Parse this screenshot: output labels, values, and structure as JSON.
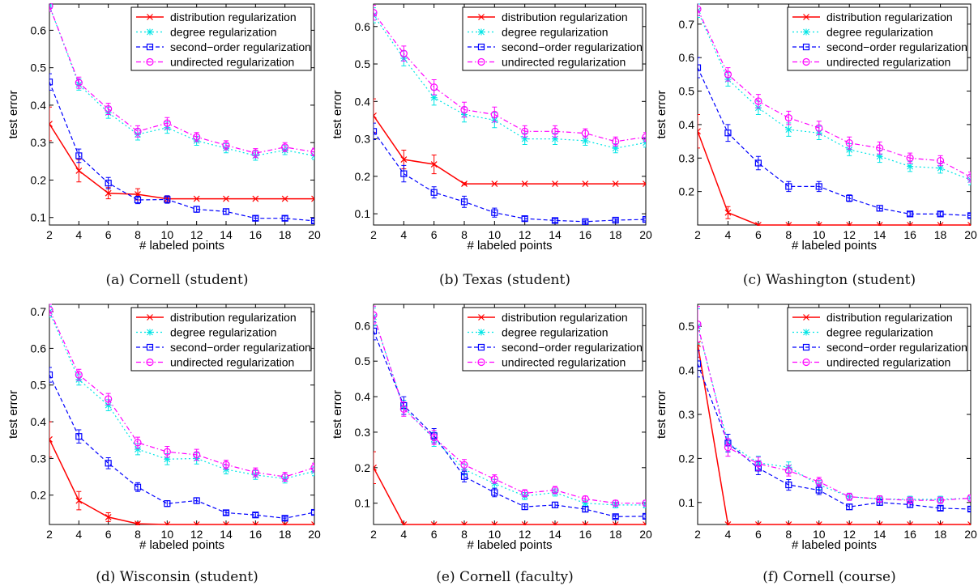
{
  "x_label": "# labeled points",
  "y_label": "test error",
  "legend_entries": [
    "distribution regularization",
    "degree regularization",
    "second−order regularization",
    "undirected regularization"
  ],
  "series_styles": [
    {
      "name": "distribution regularization",
      "color": "#ff0000",
      "marker": "x",
      "dash": "solid"
    },
    {
      "name": "degree regularization",
      "color": "#00e5e5",
      "marker": "asterisk",
      "dash": "dotted"
    },
    {
      "name": "second−order regularization",
      "color": "#0000ff",
      "marker": "square",
      "dash": "dashed"
    },
    {
      "name": "undirected regularization",
      "color": "#ff00ff",
      "marker": "circle",
      "dash": "dashdot"
    }
  ],
  "chart_data": [
    {
      "type": "line",
      "caption": "(a) Cornell (student)",
      "x": [
        2,
        4,
        6,
        8,
        10,
        12,
        14,
        16,
        18,
        20
      ],
      "xlim": [
        2,
        20
      ],
      "ylim": [
        0.08,
        0.67
      ],
      "legend_position": "top-right",
      "xticks": [
        2,
        4,
        6,
        8,
        10,
        12,
        14,
        16,
        18,
        20
      ],
      "yticks": [
        0.1,
        0.2,
        0.3,
        0.4,
        0.5,
        0.6
      ],
      "series": [
        {
          "name": "distribution regularization",
          "values": [
            0.35,
            0.225,
            0.165,
            0.162,
            0.15,
            0.15,
            0.15,
            0.15,
            0.15,
            0.15
          ],
          "errors": [
            0.045,
            0.03,
            0.015,
            0.015,
            0.008,
            0,
            0,
            0,
            0,
            0
          ]
        },
        {
          "name": "degree regularization",
          "values": [
            0.665,
            0.455,
            0.38,
            0.322,
            0.34,
            0.305,
            0.285,
            0.265,
            0.28,
            0.265
          ],
          "errors": [
            0.015,
            0.015,
            0.015,
            0.015,
            0.015,
            0.012,
            0.012,
            0.012,
            0.012,
            0.01
          ]
        },
        {
          "name": "second−order regularization",
          "values": [
            0.462,
            0.265,
            0.192,
            0.147,
            0.148,
            0.122,
            0.116,
            0.098,
            0.098,
            0.091
          ],
          "errors": [
            0.022,
            0.018,
            0.015,
            0.01,
            0.01,
            0.008,
            0.007,
            0.006,
            0.006,
            0.006
          ]
        },
        {
          "name": "undirected regularization",
          "values": [
            0.665,
            0.46,
            0.39,
            0.33,
            0.352,
            0.315,
            0.293,
            0.272,
            0.288,
            0.275
          ],
          "errors": [
            0.015,
            0.015,
            0.015,
            0.015,
            0.015,
            0.012,
            0.012,
            0.012,
            0.012,
            0.01
          ]
        }
      ]
    },
    {
      "type": "line",
      "caption": "(b) Texas (student)",
      "x": [
        2,
        4,
        6,
        8,
        10,
        12,
        14,
        16,
        18,
        20
      ],
      "xlim": [
        2,
        20
      ],
      "ylim": [
        0.07,
        0.66
      ],
      "legend_position": "top-right",
      "xticks": [
        2,
        4,
        6,
        8,
        10,
        12,
        14,
        16,
        18,
        20
      ],
      "yticks": [
        0.1,
        0.2,
        0.3,
        0.4,
        0.5,
        0.6
      ],
      "series": [
        {
          "name": "distribution regularization",
          "values": [
            0.362,
            0.245,
            0.232,
            0.18,
            0.18,
            0.18,
            0.18,
            0.18,
            0.18,
            0.18
          ],
          "errors": [
            0.045,
            0.025,
            0.025,
            0.003,
            0,
            0,
            0,
            0,
            0,
            0
          ]
        },
        {
          "name": "degree regularization",
          "values": [
            0.63,
            0.515,
            0.41,
            0.365,
            0.35,
            0.3,
            0.3,
            0.295,
            0.275,
            0.29
          ],
          "errors": [
            0.02,
            0.02,
            0.02,
            0.02,
            0.02,
            0.015,
            0.015,
            0.012,
            0.012,
            0.012
          ]
        },
        {
          "name": "second−order regularization",
          "values": [
            0.32,
            0.207,
            0.157,
            0.132,
            0.103,
            0.087,
            0.082,
            0.079,
            0.083,
            0.085
          ],
          "errors": [
            0.022,
            0.022,
            0.015,
            0.015,
            0.012,
            0.006,
            0.005,
            0.004,
            0.004,
            0.004
          ]
        },
        {
          "name": "undirected regularization",
          "values": [
            0.637,
            0.528,
            0.438,
            0.378,
            0.365,
            0.32,
            0.32,
            0.315,
            0.293,
            0.305
          ],
          "errors": [
            0.02,
            0.02,
            0.02,
            0.02,
            0.02,
            0.015,
            0.015,
            0.012,
            0.012,
            0.012
          ]
        }
      ]
    },
    {
      "type": "line",
      "caption": "(c) Washington (student)",
      "x": [
        2,
        4,
        6,
        8,
        10,
        12,
        14,
        16,
        18,
        20
      ],
      "xlim": [
        2,
        20
      ],
      "ylim": [
        0.1,
        0.76
      ],
      "legend_position": "top-right",
      "xticks": [
        2,
        4,
        6,
        8,
        10,
        12,
        14,
        16,
        18,
        20
      ],
      "yticks": [
        0.2,
        0.3,
        0.4,
        0.5,
        0.6,
        0.7
      ],
      "series": [
        {
          "name": "distribution regularization",
          "values": [
            0.38,
            0.137,
            0.1,
            0.1,
            0.1,
            0.1,
            0.1,
            0.1,
            0.1,
            0.1
          ],
          "errors": [
            0.05,
            0.018,
            0,
            0,
            0,
            0,
            0,
            0,
            0,
            0
          ]
        },
        {
          "name": "degree regularization",
          "values": [
            0.74,
            0.535,
            0.45,
            0.385,
            0.375,
            0.325,
            0.305,
            0.275,
            0.27,
            0.235
          ],
          "errors": [
            0.02,
            0.02,
            0.02,
            0.02,
            0.02,
            0.018,
            0.018,
            0.015,
            0.015,
            0.015
          ]
        },
        {
          "name": "second−order regularization",
          "values": [
            0.57,
            0.375,
            0.285,
            0.215,
            0.215,
            0.18,
            0.15,
            0.133,
            0.133,
            0.128
          ],
          "errors": [
            0.03,
            0.025,
            0.02,
            0.015,
            0.015,
            0.01,
            0.008,
            0.006,
            0.006,
            0.006
          ]
        },
        {
          "name": "undirected regularization",
          "values": [
            0.745,
            0.55,
            0.47,
            0.42,
            0.39,
            0.345,
            0.33,
            0.3,
            0.292,
            0.243
          ],
          "errors": [
            0.02,
            0.02,
            0.02,
            0.02,
            0.02,
            0.018,
            0.018,
            0.015,
            0.015,
            0.015
          ]
        }
      ]
    },
    {
      "type": "line",
      "caption": "(d) Wisconsin (student)",
      "x": [
        2,
        4,
        6,
        8,
        10,
        12,
        14,
        16,
        18,
        20
      ],
      "xlim": [
        2,
        20
      ],
      "ylim": [
        0.12,
        0.72
      ],
      "legend_position": "top-right",
      "xticks": [
        2,
        4,
        6,
        8,
        10,
        12,
        14,
        16,
        18,
        20
      ],
      "yticks": [
        0.2,
        0.3,
        0.4,
        0.5,
        0.6,
        0.7
      ],
      "series": [
        {
          "name": "distribution regularization",
          "values": [
            0.352,
            0.185,
            0.14,
            0.122,
            0.12,
            0.12,
            0.12,
            0.12,
            0.12,
            0.12
          ],
          "errors": [
            0.048,
            0.025,
            0.012,
            0.004,
            0,
            0,
            0,
            0,
            0,
            0
          ]
        },
        {
          "name": "degree regularization",
          "values": [
            0.7,
            0.515,
            0.445,
            0.325,
            0.298,
            0.3,
            0.27,
            0.255,
            0.245,
            0.265
          ],
          "errors": [
            0.015,
            0.015,
            0.015,
            0.015,
            0.015,
            0.015,
            0.012,
            0.012,
            0.012,
            0.012
          ]
        },
        {
          "name": "second−order regularization",
          "values": [
            0.528,
            0.36,
            0.287,
            0.222,
            0.177,
            0.185,
            0.152,
            0.146,
            0.137,
            0.153
          ],
          "errors": [
            0.02,
            0.018,
            0.015,
            0.012,
            0.008,
            0.008,
            0.006,
            0.006,
            0.005,
            0.006
          ]
        },
        {
          "name": "undirected regularization",
          "values": [
            0.705,
            0.528,
            0.462,
            0.343,
            0.318,
            0.31,
            0.283,
            0.262,
            0.25,
            0.275
          ],
          "errors": [
            0.015,
            0.015,
            0.015,
            0.015,
            0.015,
            0.015,
            0.012,
            0.012,
            0.012,
            0.012
          ]
        }
      ]
    },
    {
      "type": "line",
      "caption": "(e) Cornell (faculty)",
      "x": [
        2,
        4,
        6,
        8,
        10,
        12,
        14,
        16,
        18,
        20
      ],
      "xlim": [
        2,
        20
      ],
      "ylim": [
        0.04,
        0.66
      ],
      "legend_position": "top-right",
      "xticks": [
        2,
        4,
        6,
        8,
        10,
        12,
        14,
        16,
        18,
        20
      ],
      "yticks": [
        0.1,
        0.2,
        0.3,
        0.4,
        0.5,
        0.6
      ],
      "series": [
        {
          "name": "distribution regularization",
          "values": [
            0.2,
            0.04,
            0.04,
            0.04,
            0.04,
            0.04,
            0.04,
            0.04,
            0.04,
            0.04
          ],
          "errors": [
            0.045,
            0,
            0,
            0,
            0,
            0,
            0,
            0,
            0,
            0
          ]
        },
        {
          "name": "degree regularization",
          "values": [
            0.625,
            0.37,
            0.28,
            0.195,
            0.155,
            0.12,
            0.13,
            0.1,
            0.095,
            0.095
          ],
          "errors": [
            0.025,
            0.02,
            0.02,
            0.015,
            0.012,
            0.01,
            0.01,
            0.008,
            0.008,
            0.008
          ]
        },
        {
          "name": "second−order regularization",
          "values": [
            0.585,
            0.375,
            0.29,
            0.175,
            0.13,
            0.09,
            0.095,
            0.083,
            0.062,
            0.063
          ],
          "errors": [
            0.025,
            0.025,
            0.02,
            0.015,
            0.012,
            0.008,
            0.008,
            0.007,
            0.005,
            0.005
          ]
        },
        {
          "name": "undirected regularization",
          "values": [
            0.63,
            0.365,
            0.285,
            0.208,
            0.168,
            0.128,
            0.137,
            0.112,
            0.1,
            0.1
          ],
          "errors": [
            0.025,
            0.02,
            0.02,
            0.015,
            0.012,
            0.01,
            0.01,
            0.008,
            0.008,
            0.008
          ]
        }
      ]
    },
    {
      "type": "line",
      "caption": "(f) Cornell (course)",
      "x": [
        2,
        4,
        6,
        8,
        10,
        12,
        14,
        16,
        18,
        20
      ],
      "xlim": [
        2,
        20
      ],
      "ylim": [
        0.05,
        0.55
      ],
      "legend_position": "top-right",
      "xticks": [
        2,
        4,
        6,
        8,
        10,
        12,
        14,
        16,
        18,
        20
      ],
      "yticks": [
        0.1,
        0.2,
        0.3,
        0.4,
        0.5
      ],
      "series": [
        {
          "name": "distribution regularization",
          "values": [
            0.46,
            0.05,
            0.05,
            0.05,
            0.05,
            0.05,
            0.05,
            0.05,
            0.05,
            0.05
          ],
          "errors": [
            0.03,
            0,
            0,
            0,
            0,
            0,
            0,
            0,
            0,
            0
          ]
        },
        {
          "name": "degree regularization",
          "values": [
            0.5,
            0.235,
            0.19,
            0.18,
            0.14,
            0.113,
            0.108,
            0.107,
            0.107,
            0.11
          ],
          "errors": [
            0.04,
            0.02,
            0.015,
            0.012,
            0.01,
            0.008,
            0.007,
            0.007,
            0.007,
            0.007
          ]
        },
        {
          "name": "second−order regularization",
          "values": [
            0.415,
            0.235,
            0.178,
            0.14,
            0.128,
            0.09,
            0.1,
            0.095,
            0.087,
            0.085
          ],
          "errors": [
            0.03,
            0.02,
            0.015,
            0.012,
            0.01,
            0.006,
            0.006,
            0.006,
            0.005,
            0.005
          ]
        },
        {
          "name": "undirected regularization",
          "values": [
            0.505,
            0.225,
            0.188,
            0.172,
            0.147,
            0.113,
            0.108,
            0.105,
            0.105,
            0.11
          ],
          "errors": [
            0.04,
            0.02,
            0.015,
            0.012,
            0.01,
            0.008,
            0.007,
            0.007,
            0.007,
            0.007
          ]
        }
      ]
    }
  ]
}
